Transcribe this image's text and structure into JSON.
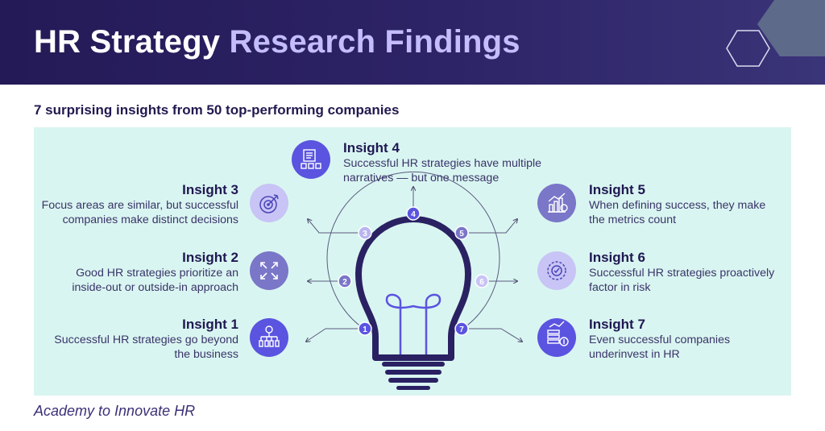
{
  "header": {
    "title_part1": "HR Strategy",
    "title_part2": "Research Findings"
  },
  "subtitle": "7 surprising insights from 50 top-performing companies",
  "footer": "Academy to Innovate HR",
  "colors": {
    "header_bg": "#2a2163",
    "accent_light": "#c3bdfb",
    "panel_bg": "#d9f5f1",
    "bulb_outline": "#2a2163",
    "icon_blue": "#5a54e0",
    "icon_light": "#c8c4f5"
  },
  "insights": [
    {
      "title": "Insight 1",
      "text_line1": "Successful HR strategies go beyond",
      "text_line2": "the business",
      "number": "1",
      "icon": "org-chart-icon"
    },
    {
      "title": "Insight 2",
      "text_line1": "Good HR strategies prioritize an",
      "text_line2": "inside-out or outside-in approach",
      "number": "2",
      "icon": "arrows-expand-icon"
    },
    {
      "title": "Insight 3",
      "text_line1": "Focus areas are similar, but successful",
      "text_line2": "companies make distinct decisions",
      "number": "3",
      "icon": "target-icon"
    },
    {
      "title": "Insight 4",
      "text_line1": "Successful HR strategies have multiple",
      "text_line2": "narratives — but one message",
      "number": "4",
      "icon": "document-icon"
    },
    {
      "title": "Insight 5",
      "text_line1": "When defining success, they make",
      "text_line2": "the metrics count",
      "number": "5",
      "icon": "bar-chart-icon"
    },
    {
      "title": "Insight 6",
      "text_line1": "Successful HR strategies proactively",
      "text_line2": "factor in risk",
      "number": "6",
      "icon": "risk-gear-icon"
    },
    {
      "title": "Insight 7",
      "text_line1": "Even successful companies",
      "text_line2": "underinvest in HR",
      "number": "7",
      "icon": "money-chart-icon"
    }
  ]
}
